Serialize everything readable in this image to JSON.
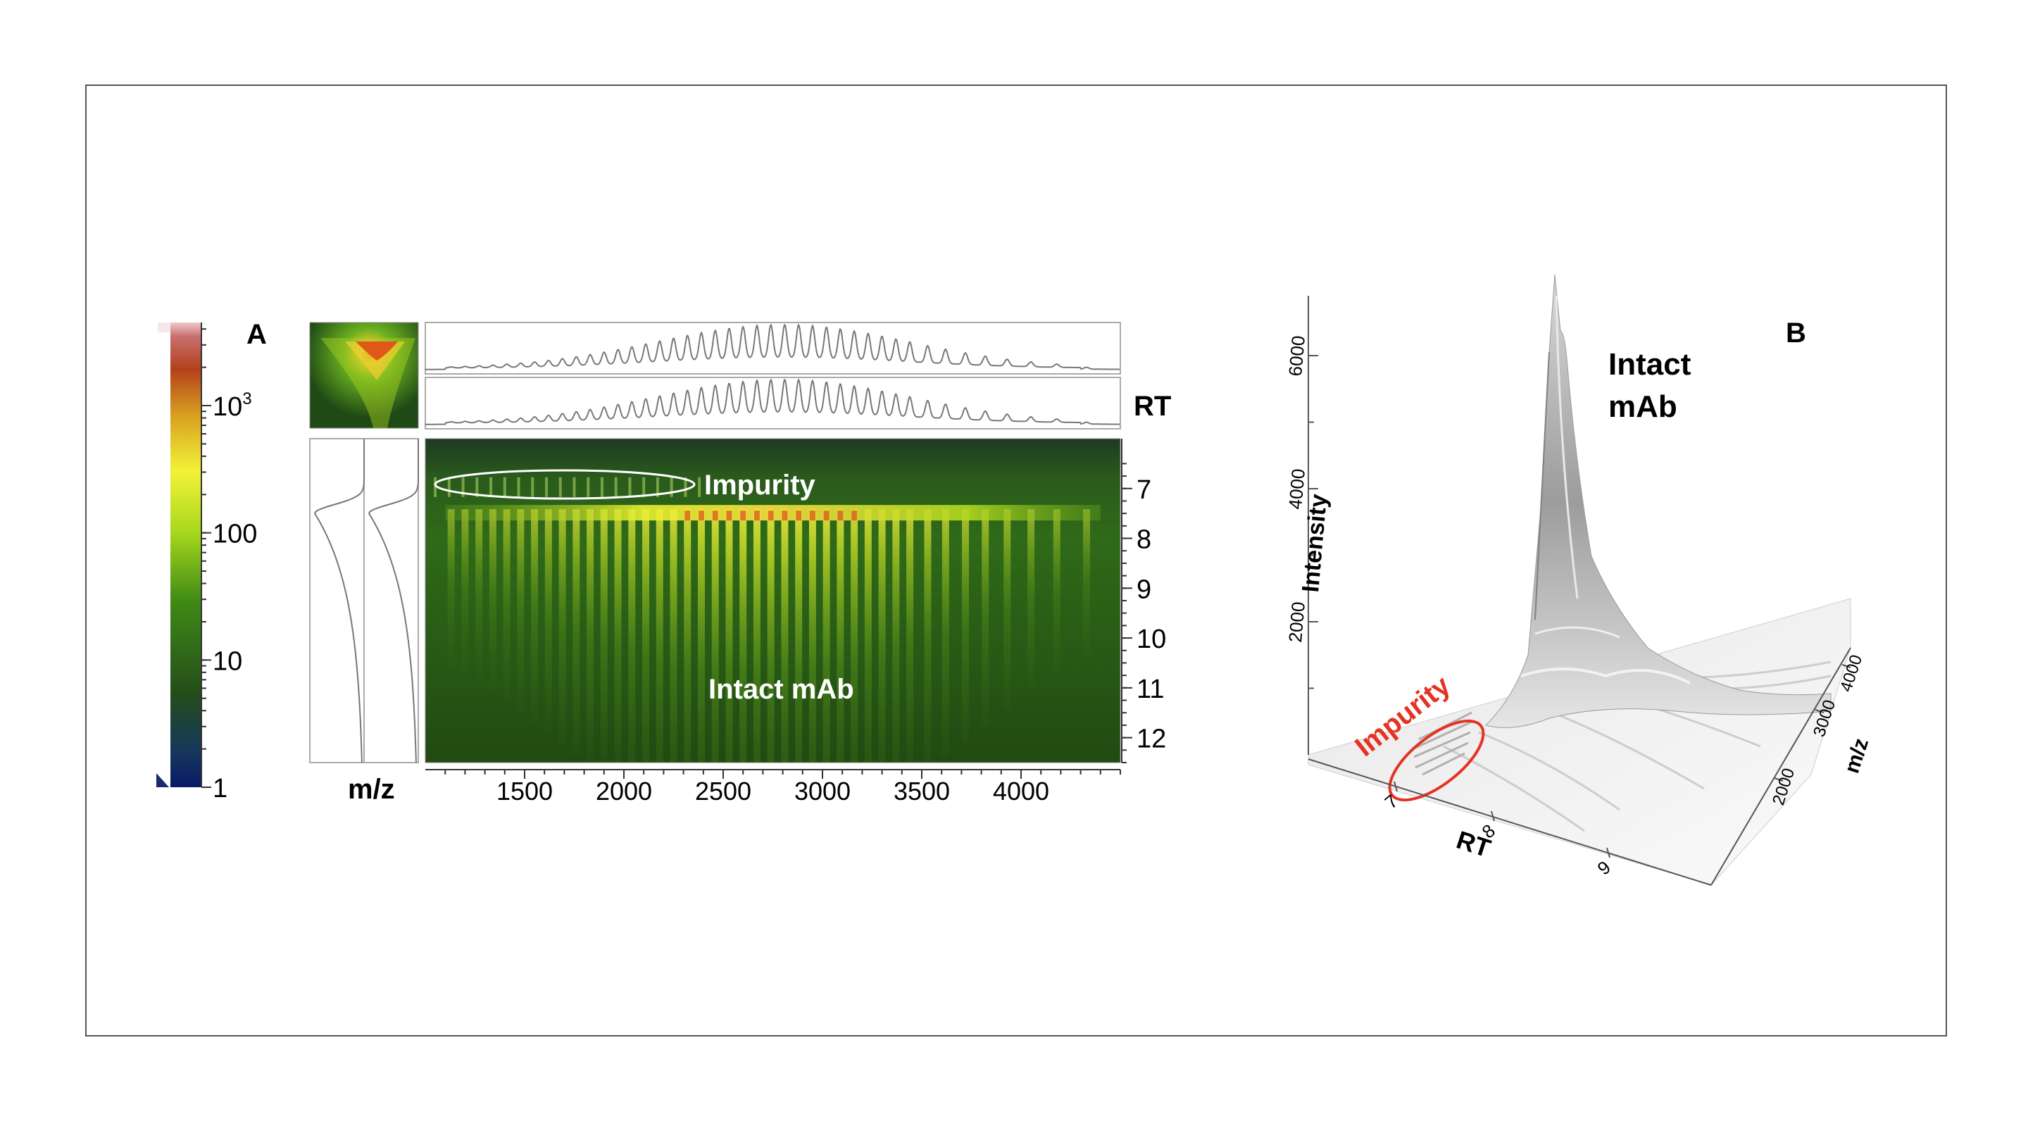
{
  "panel_a": {
    "label": "A",
    "colorbar": {
      "ticks": [
        {
          "label": "1",
          "value": 1
        },
        {
          "label": "10",
          "value": 10
        },
        {
          "label": "100",
          "value": 100
        },
        {
          "label": "10",
          "sup": "3",
          "value": 1000
        }
      ]
    },
    "rt_axis_title": "RT",
    "mz_axis_title": "m/z",
    "rt_ticks": [
      "7",
      "8",
      "9",
      "10",
      "11",
      "12"
    ],
    "mz_ticks": [
      "1500",
      "2000",
      "2500",
      "3000",
      "3500",
      "4000"
    ],
    "annotation_impurity": "Impurity",
    "annotation_mab": "Intact mAb",
    "colors": {
      "heatmap_bg": "#234a12",
      "impurity_ellipse": "#ffffff"
    }
  },
  "panel_b": {
    "label": "B",
    "peak_label_line1": "Intact",
    "peak_label_line2": "mAb",
    "impurity_label": "Impurity",
    "intensity_title": "Intensity",
    "intensity_ticks": [
      "2000",
      "4000",
      "6000"
    ],
    "rt_title": "RT",
    "rt_ticks": [
      "7",
      "8",
      "9"
    ],
    "mz_title": "m/z",
    "mz_ticks": [
      "2000",
      "3000",
      "4000"
    ],
    "colors": {
      "impurity": "#e53323",
      "surface": "#b8b8b8"
    }
  },
  "chart_data": [
    {
      "type": "heatmap",
      "title": "",
      "xlabel": "m/z",
      "ylabel": "RT",
      "xlim": [
        1000,
        4500
      ],
      "ylim": [
        6,
        12.5
      ],
      "x_ticks": [
        1500,
        2000,
        2500,
        3000,
        3500,
        4000
      ],
      "y_ticks": [
        7,
        8,
        9,
        10,
        11,
        12
      ],
      "color_scale": "log",
      "color_range": [
        1,
        3000
      ],
      "charge_state_peaks_mz": [
        1130,
        1200,
        1270,
        1340,
        1410,
        1480,
        1550,
        1620,
        1690,
        1760,
        1830,
        1900,
        1970,
        2040,
        2110,
        2180,
        2250,
        2320,
        2390,
        2460,
        2530,
        2600,
        2670,
        2740,
        2810,
        2880,
        2950,
        3020,
        3090,
        3160,
        3230,
        3300,
        3370,
        3440,
        3530,
        3620,
        3720,
        3820,
        3930,
        4050,
        4180,
        4330
      ],
      "intact_mab_apex_rt": 7.5,
      "impurity_rt": 7.0,
      "impurity_mz_range": [
        1050,
        2400
      ]
    },
    {
      "type": "surface",
      "title": "",
      "xlabel": "RT",
      "ylabel": "m/z",
      "zlabel": "Intensity",
      "x_ticks": [
        7,
        8,
        9
      ],
      "y_ticks": [
        2000,
        3000,
        4000
      ],
      "z_ticks": [
        2000,
        4000,
        6000
      ],
      "peak_intensity": 6300,
      "peak_rt": 7.5
    }
  ]
}
